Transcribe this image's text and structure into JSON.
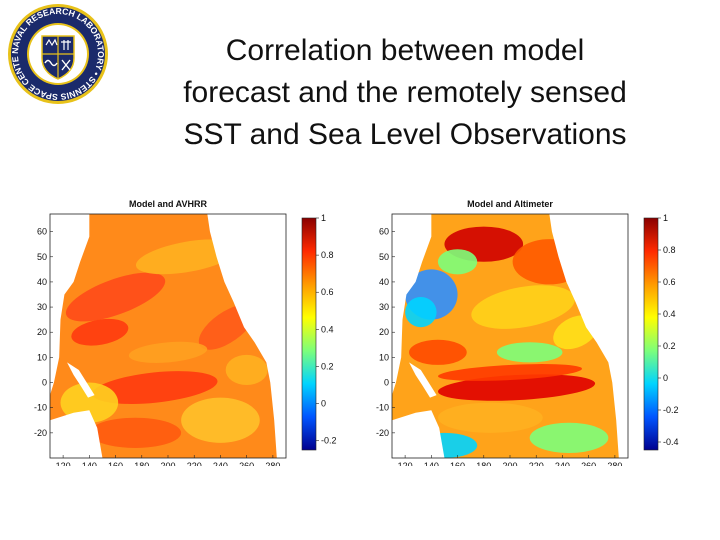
{
  "slide": {
    "title_lines": [
      "Correlation between model",
      "forecast and the remotely sensed",
      "SST and Sea Level Observations"
    ]
  },
  "logo": {
    "ring_text": "NAVAL RESEARCH LABORATORY • STENNIS SPACE CENTER •",
    "colors": {
      "ring": "#1b2a6b",
      "gold": "#e8c21a"
    }
  },
  "colorbar_colors": [
    "#00008f",
    "#0055ff",
    "#00d4ff",
    "#7dff7a",
    "#ffff00",
    "#ff9a00",
    "#ff2a00",
    "#8a0000"
  ],
  "chart_data": [
    {
      "type": "heatmap",
      "title": "Model and AVHRR",
      "xlabel": "",
      "ylabel": "",
      "x_ticks": [
        120,
        140,
        160,
        180,
        200,
        220,
        240,
        260,
        280
      ],
      "y_ticks": [
        60,
        50,
        40,
        30,
        20,
        10,
        0,
        -10,
        -20
      ],
      "xlim": [
        110,
        290
      ],
      "ylim": [
        -30,
        67
      ],
      "colorbar": {
        "ticks": [
          1,
          0.8,
          0.6,
          0.4,
          0.2,
          0,
          -0.2
        ],
        "range": [
          -0.25,
          1
        ]
      },
      "dominant_correlation": "0.6-0.9"
    },
    {
      "type": "heatmap",
      "title": "Model and Altimeter",
      "xlabel": "",
      "ylabel": "",
      "x_ticks": [
        120,
        140,
        160,
        180,
        200,
        220,
        240,
        260,
        280
      ],
      "y_ticks": [
        60,
        50,
        40,
        30,
        20,
        10,
        0,
        -10,
        -20
      ],
      "xlim": [
        110,
        290
      ],
      "ylim": [
        -30,
        67
      ],
      "colorbar": {
        "ticks": [
          1,
          0.8,
          0.6,
          0.4,
          0.2,
          0,
          -0.2,
          -0.4
        ],
        "range": [
          -0.45,
          1
        ]
      },
      "dominant_correlation": "0.2-0.9"
    }
  ]
}
